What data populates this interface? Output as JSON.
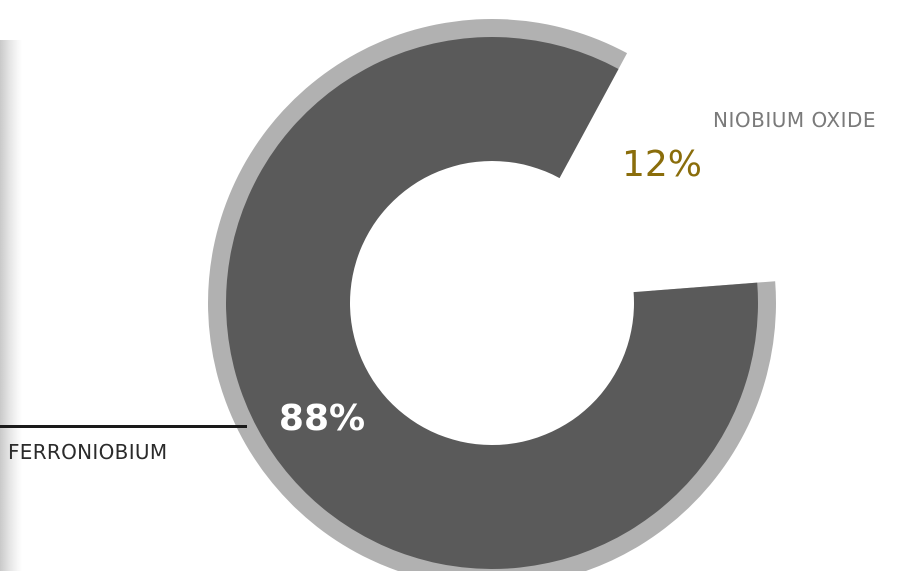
{
  "chart_data": {
    "type": "pie",
    "variant": "donut",
    "title": "",
    "slices": [
      {
        "label": "FERRONIOBIUM",
        "value": 88,
        "display_value": "88%",
        "color": "#5a5a5a"
      },
      {
        "label": "NIOBIUM OXIDE",
        "value": 12,
        "display_value": "12%",
        "color": "#f8bf00"
      }
    ],
    "colors": {
      "outer_ring": "#b1b1b1",
      "main_slice": "#5a5a5a",
      "accent_slice": "#f8bf00",
      "main_value_text": "#ffffff",
      "accent_value_text": "#8a6d0b",
      "accent_label_text": "#7a7a7a",
      "main_label_text": "#2b2b2b"
    },
    "legend": "none",
    "labels_placement": "outside"
  }
}
